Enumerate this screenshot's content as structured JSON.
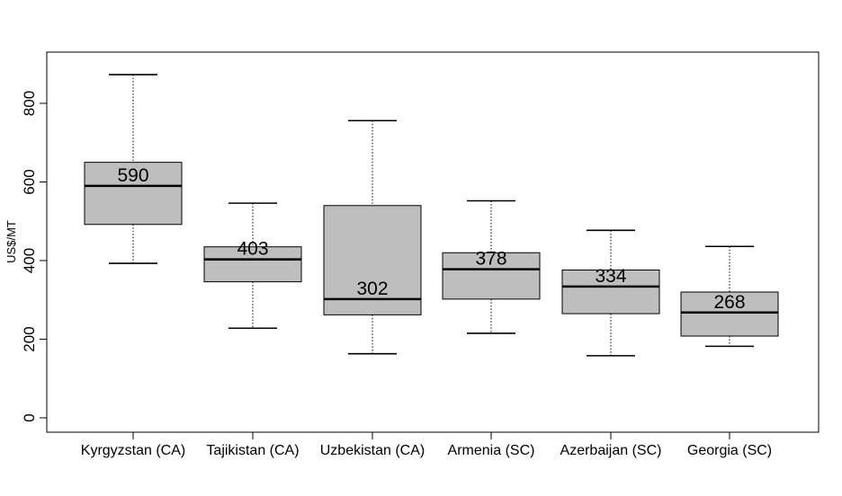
{
  "chart_data": {
    "type": "boxplot",
    "ylabel": "US$/MT",
    "ylim": [
      0,
      900
    ],
    "yticks": [
      0,
      200,
      400,
      600,
      800
    ],
    "categories": [
      "Kyrgyzstan (CA)",
      "Tajikistan (CA)",
      "Uzbekistan (CA)",
      "Armenia (SC)",
      "Azerbaijan (SC)",
      "Georgia (SC)"
    ],
    "boxes": [
      {
        "whisker_low": 393,
        "q1": 492,
        "median": 590,
        "q3": 650,
        "whisker_high": 873,
        "label": "590"
      },
      {
        "whisker_low": 228,
        "q1": 346,
        "median": 403,
        "q3": 435,
        "whisker_high": 546,
        "label": "403"
      },
      {
        "whisker_low": 163,
        "q1": 262,
        "median": 302,
        "q3": 540,
        "whisker_high": 756,
        "label": "302"
      },
      {
        "whisker_low": 215,
        "q1": 302,
        "median": 378,
        "q3": 420,
        "whisker_high": 552,
        "label": "378"
      },
      {
        "whisker_low": 158,
        "q1": 265,
        "median": 334,
        "q3": 376,
        "whisker_high": 477,
        "label": "334"
      },
      {
        "whisker_low": 182,
        "q1": 208,
        "median": 268,
        "q3": 320,
        "whisker_high": 436,
        "label": "268"
      }
    ],
    "box_color": "#bebebe",
    "grid": false,
    "legend": "none"
  }
}
